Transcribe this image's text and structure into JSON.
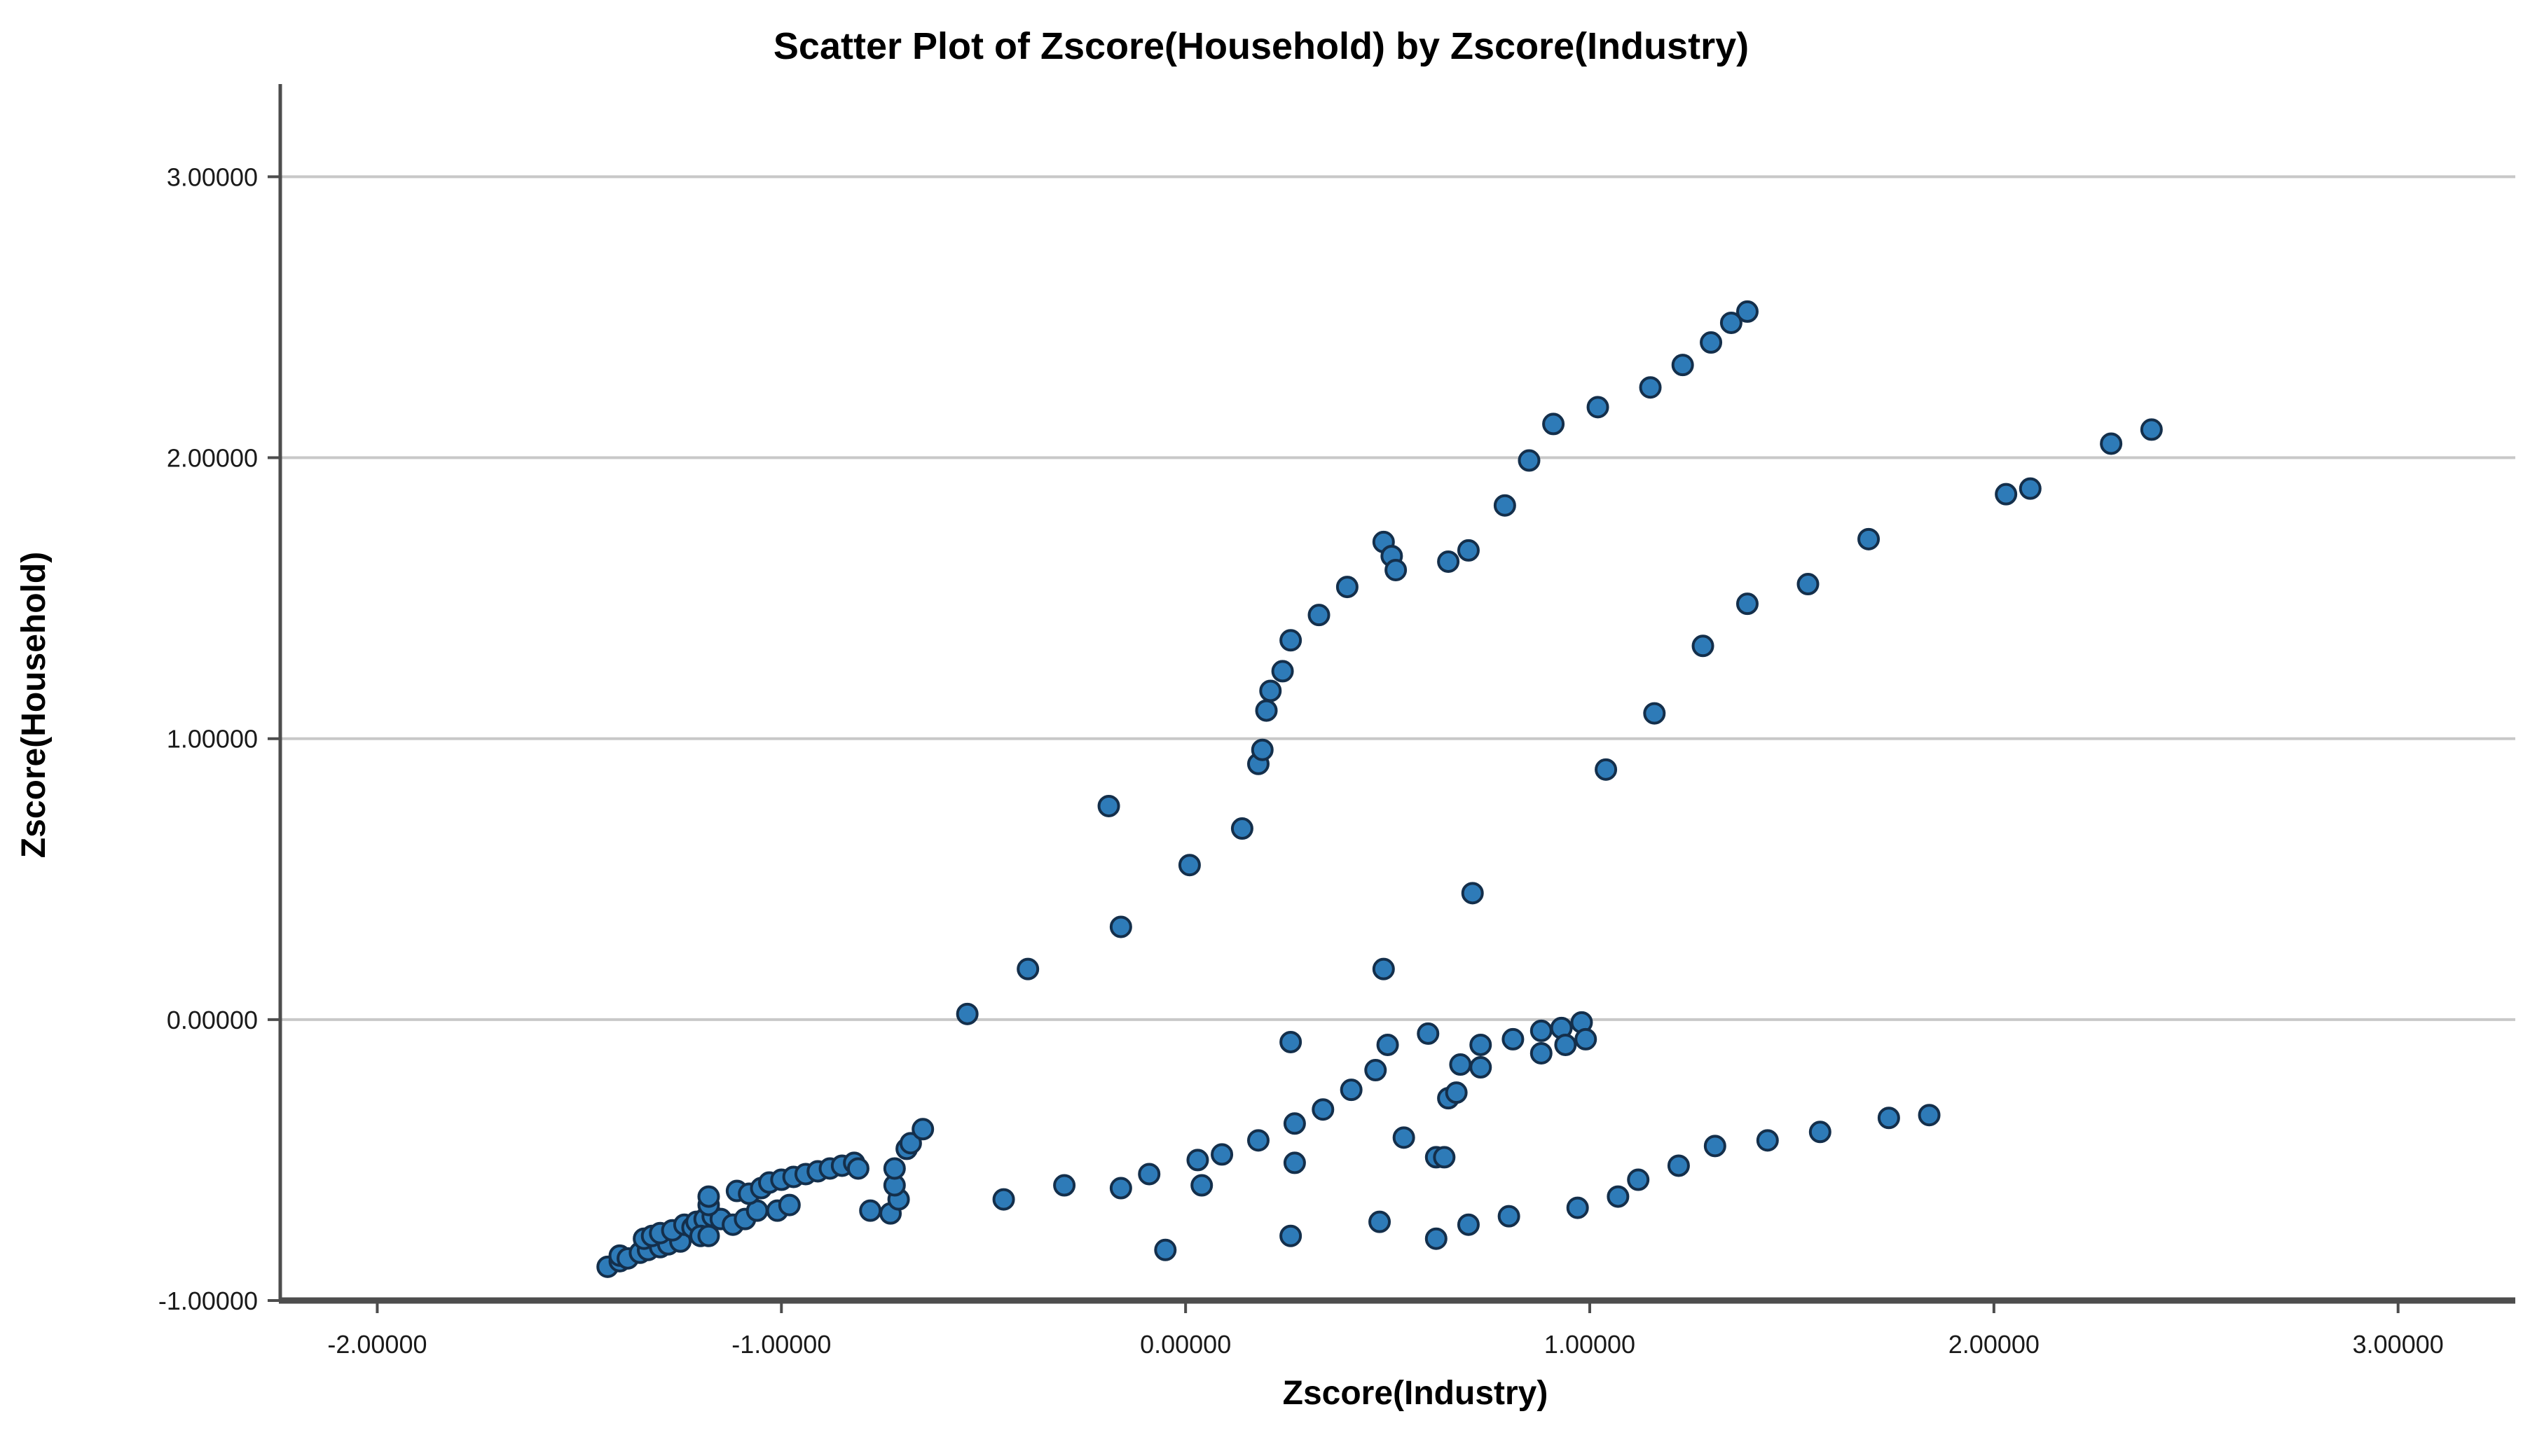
{
  "title": "Scatter Plot of Zscore(Household) by Zscore(Industry)",
  "colors": {
    "background": "#ffffff",
    "point_fill": "#2E7BB8",
    "point_stroke": "#142F4B",
    "gridline": "#C8C8C8",
    "axis_line": "#4D4D4D",
    "tick_text": "#1a1a1a",
    "title_text": "#000000"
  },
  "x_axis": {
    "label": "Zscore(Industry)",
    "ticks": [
      {
        "value": -2,
        "text": "-2.00000"
      },
      {
        "value": -1,
        "text": "-1.00000"
      },
      {
        "value": 0,
        "text": "0.00000"
      },
      {
        "value": 1,
        "text": "1.00000"
      },
      {
        "value": 2,
        "text": "2.00000"
      },
      {
        "value": 3,
        "text": "3.00000"
      }
    ]
  },
  "y_axis": {
    "label": "Zscore(Household)",
    "ticks": [
      {
        "value": 3,
        "text": "3.00000"
      },
      {
        "value": 2,
        "text": "2.00000"
      },
      {
        "value": 1,
        "text": "1.00000"
      },
      {
        "value": 0,
        "text": "0.00000"
      },
      {
        "value": -1,
        "text": "-1.00000"
      }
    ]
  },
  "chart_data": {
    "type": "scatter",
    "title": "Scatter Plot of Zscore(Household) by Zscore(Industry)",
    "xlabel": "Zscore(Industry)",
    "ylabel": "Zscore(Household)",
    "xlim": [
      -2.24,
      3.29
    ],
    "ylim": [
      -1.0,
      3.33
    ],
    "x_ticks": [
      -2,
      -1,
      0,
      1,
      2,
      3
    ],
    "y_ticks": [
      3,
      2,
      1,
      0,
      -1
    ],
    "grid": "horizontal",
    "legend_position": "none",
    "points": [
      [
        -1.43,
        -0.88
      ],
      [
        -1.4,
        -0.86
      ],
      [
        -1.4,
        -0.84
      ],
      [
        -1.38,
        -0.85
      ],
      [
        -1.35,
        -0.83
      ],
      [
        -1.33,
        -0.82
      ],
      [
        -1.3,
        -0.81
      ],
      [
        -1.28,
        -0.8
      ],
      [
        -1.25,
        -0.79
      ],
      [
        -1.34,
        -0.78
      ],
      [
        -1.32,
        -0.77
      ],
      [
        -1.3,
        -0.76
      ],
      [
        -1.27,
        -0.75
      ],
      [
        -1.24,
        -0.73
      ],
      [
        -1.22,
        -0.74
      ],
      [
        -1.21,
        -0.72
      ],
      [
        -1.19,
        -0.71
      ],
      [
        -1.17,
        -0.7
      ],
      [
        -1.2,
        -0.77
      ],
      [
        -1.18,
        -0.77
      ],
      [
        -1.15,
        -0.71
      ],
      [
        -1.18,
        -0.66
      ],
      [
        -1.18,
        -0.63
      ],
      [
        -1.12,
        -0.73
      ],
      [
        -1.09,
        -0.71
      ],
      [
        -1.06,
        -0.68
      ],
      [
        -1.01,
        -0.68
      ],
      [
        -0.98,
        -0.66
      ],
      [
        -1.11,
        -0.61
      ],
      [
        -1.08,
        -0.62
      ],
      [
        -1.05,
        -0.6
      ],
      [
        -1.03,
        -0.58
      ],
      [
        -1.0,
        -0.57
      ],
      [
        -0.97,
        -0.56
      ],
      [
        -0.94,
        -0.55
      ],
      [
        -0.91,
        -0.54
      ],
      [
        -0.88,
        -0.53
      ],
      [
        -0.85,
        -0.52
      ],
      [
        -0.82,
        -0.51
      ],
      [
        -0.81,
        -0.53
      ],
      [
        -0.78,
        -0.68
      ],
      [
        -0.73,
        -0.69
      ],
      [
        -0.71,
        -0.64
      ],
      [
        -0.72,
        -0.59
      ],
      [
        -0.72,
        -0.53
      ],
      [
        -0.69,
        -0.46
      ],
      [
        -0.68,
        -0.44
      ],
      [
        -0.65,
        -0.39
      ],
      [
        -0.45,
        -0.64
      ],
      [
        -0.3,
        -0.59
      ],
      [
        -0.16,
        -0.6
      ],
      [
        -0.09,
        -0.55
      ],
      [
        -0.05,
        -0.82
      ],
      [
        0.26,
        -0.77
      ],
      [
        0.48,
        -0.72
      ],
      [
        0.62,
        -0.78
      ],
      [
        0.03,
        -0.5
      ],
      [
        0.04,
        -0.59
      ],
      [
        0.09,
        -0.48
      ],
      [
        0.18,
        -0.43
      ],
      [
        0.27,
        -0.51
      ],
      [
        0.27,
        -0.37
      ],
      [
        0.34,
        -0.32
      ],
      [
        0.41,
        -0.25
      ],
      [
        0.47,
        -0.18
      ],
      [
        0.54,
        -0.42
      ],
      [
        0.62,
        -0.49
      ],
      [
        0.65,
        -0.28
      ],
      [
        0.26,
        -0.08
      ],
      [
        0.5,
        -0.09
      ],
      [
        0.6,
        -0.05
      ],
      [
        0.49,
        0.18
      ],
      [
        0.64,
        -0.49
      ],
      [
        0.67,
        -0.26
      ],
      [
        0.68,
        -0.16
      ],
      [
        0.73,
        -0.17
      ],
      [
        0.73,
        -0.09
      ],
      [
        0.81,
        -0.07
      ],
      [
        0.88,
        -0.12
      ],
      [
        0.88,
        -0.04
      ],
      [
        0.93,
        -0.03
      ],
      [
        0.94,
        -0.09
      ],
      [
        0.98,
        -0.01
      ],
      [
        0.99,
        -0.07
      ],
      [
        0.7,
        -0.73
      ],
      [
        0.8,
        -0.7
      ],
      [
        0.97,
        -0.67
      ],
      [
        1.07,
        -0.63
      ],
      [
        1.12,
        -0.57
      ],
      [
        1.22,
        -0.52
      ],
      [
        1.31,
        -0.45
      ],
      [
        1.44,
        -0.43
      ],
      [
        1.57,
        -0.4
      ],
      [
        1.74,
        -0.35
      ],
      [
        1.84,
        -0.34
      ],
      [
        -0.54,
        0.02
      ],
      [
        -0.39,
        0.18
      ],
      [
        -0.16,
        0.33
      ],
      [
        -0.19,
        0.76
      ],
      [
        0.01,
        0.55
      ],
      [
        0.14,
        0.68
      ],
      [
        0.18,
        0.91
      ],
      [
        0.19,
        0.96
      ],
      [
        0.2,
        1.1
      ],
      [
        0.21,
        1.17
      ],
      [
        0.24,
        1.24
      ],
      [
        0.26,
        1.35
      ],
      [
        0.33,
        1.44
      ],
      [
        0.4,
        1.54
      ],
      [
        0.49,
        1.7
      ],
      [
        0.51,
        1.65
      ],
      [
        0.52,
        1.6
      ],
      [
        0.65,
        1.63
      ],
      [
        0.7,
        1.67
      ],
      [
        0.71,
        0.45
      ],
      [
        0.79,
        1.83
      ],
      [
        0.85,
        1.99
      ],
      [
        0.91,
        2.12
      ],
      [
        1.02,
        2.18
      ],
      [
        1.15,
        2.25
      ],
      [
        1.23,
        2.33
      ],
      [
        1.3,
        2.41
      ],
      [
        1.35,
        2.48
      ],
      [
        1.39,
        2.52
      ],
      [
        1.04,
        0.89
      ],
      [
        1.16,
        1.09
      ],
      [
        1.28,
        1.33
      ],
      [
        1.39,
        1.48
      ],
      [
        1.54,
        1.55
      ],
      [
        1.69,
        1.71
      ],
      [
        2.03,
        1.87
      ],
      [
        2.09,
        1.89
      ],
      [
        2.29,
        2.05
      ],
      [
        2.39,
        2.1
      ]
    ]
  }
}
